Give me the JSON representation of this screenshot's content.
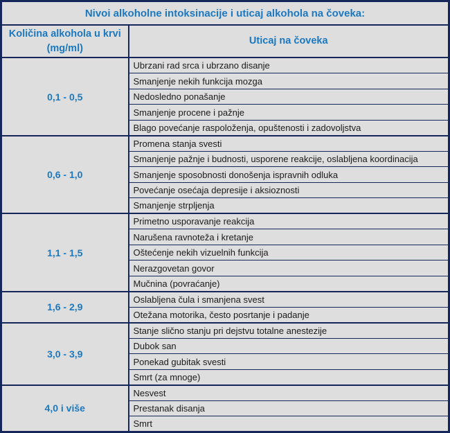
{
  "table": {
    "title": "Nivoi alkoholne intoksinacije i uticaj alkohola na čoveka:",
    "headers": {
      "amount_line1": "Količina alkohola u krvi",
      "amount_line2": "(mg/ml)",
      "effect": "Uticaj na čoveka"
    },
    "groups": [
      {
        "range": "0,1 - 0,5",
        "effects": [
          "Ubrzani rad srca i ubrzano disanje",
          "Smanjenje nekih funkcija mozga",
          "Nedosledno ponašanje",
          "Smanjenje procene i pažnje",
          "Blago povećanje raspoloženja, opuštenosti i zadovoljstva"
        ]
      },
      {
        "range": "0,6 - 1,0",
        "effects": [
          "Promena stanja svesti",
          "Smanjenje pažnje i budnosti, usporene reakcije, oslabljena koordinacija",
          "Smanjenje sposobnosti donošenja ispravnih odluka",
          "Povećanje osećaja depresije i aksioznosti",
          "Smanjenje strpljenja"
        ]
      },
      {
        "range": "1,1 - 1,5",
        "effects": [
          "Primetno usporavanje reakcija",
          "Narušena ravnoteža i kretanje",
          "Oštećenje nekih vizuelnih funkcija",
          "Nerazgovetan govor",
          "Mučnina (povraćanje)"
        ]
      },
      {
        "range": "1,6 - 2,9",
        "effects": [
          "Oslabljena čula i smanjena svest",
          "Otežana motorika, često posrtanje i padanje"
        ]
      },
      {
        "range": "3,0 - 3,9",
        "effects": [
          "Stanje slično stanju pri dejstvu totalne anestezije",
          "Dubok san",
          "Ponekad gubitak svesti",
          "Smrt (za mnoge)"
        ]
      },
      {
        "range": "4,0 i više",
        "effects": [
          "Nesvest",
          "Prestanak disanja",
          "Smrt"
        ]
      }
    ],
    "colors": {
      "border_navy": "#15265b",
      "cell_background": "#dedede",
      "accent_blue": "#1b78c0",
      "effect_text": "#1a1a1a"
    }
  }
}
